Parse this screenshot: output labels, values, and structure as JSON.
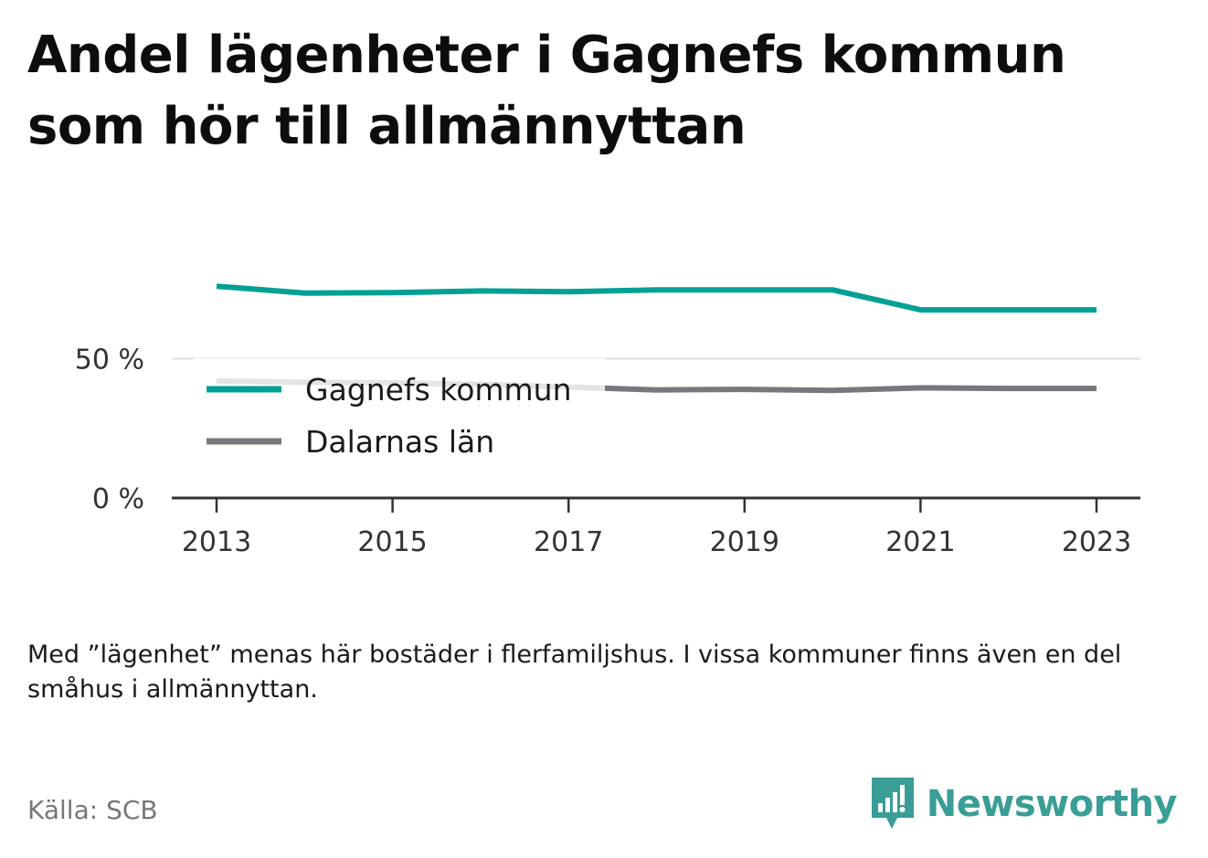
{
  "header": {
    "title": "Andel lägenheter i Gagnefs kommun som hör till allmännyttan"
  },
  "chart_data": {
    "type": "line",
    "x": [
      2013,
      2014,
      2015,
      2016,
      2017,
      2018,
      2019,
      2020,
      2021,
      2022,
      2023
    ],
    "x_ticks": [
      2013,
      2015,
      2017,
      2019,
      2021,
      2023
    ],
    "x_tick_labels": [
      "2013",
      "2015",
      "2017",
      "2019",
      "2021",
      "2023"
    ],
    "y_ticks": [
      0,
      50
    ],
    "y_tick_labels": [
      "0 %",
      "50 %"
    ],
    "ylim": [
      0,
      80
    ],
    "series": [
      {
        "name": "Gagnefs kommun",
        "color": "#00a095",
        "values": [
          76,
          73.5,
          73.7,
          74.3,
          74,
          74.7,
          74.7,
          74.7,
          67.5,
          67.5,
          67.5
        ]
      },
      {
        "name": "Dalarnas län",
        "color": "#77777e",
        "values": [
          42,
          41.5,
          41.3,
          40.8,
          39.8,
          38.8,
          39,
          38.6,
          39.5,
          39.3,
          39.3
        ]
      }
    ],
    "grid": true,
    "legend_placement": "center-left"
  },
  "footer": {
    "note": "Med ”lägenhet” menas här bostäder i flerfamiljshus. I vissa kommuner finns även en del småhus i allmännyttan.",
    "source": "Källa: SCB",
    "brand": "Newsworthy",
    "brand_color": "#3a9d96"
  }
}
